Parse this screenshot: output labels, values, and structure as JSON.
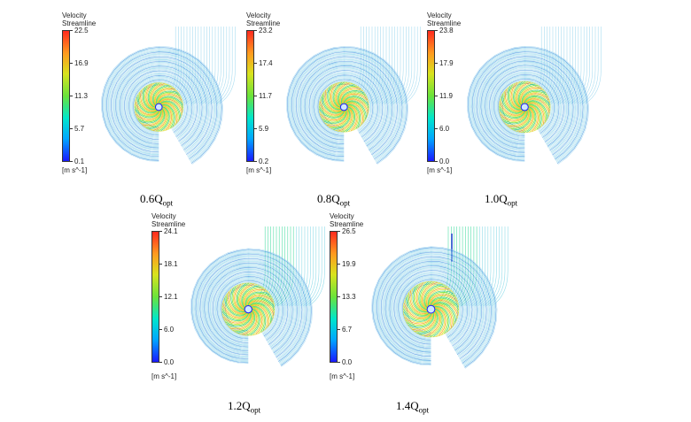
{
  "legend": {
    "title_line1": "Velocity",
    "title_line2": "Streamline",
    "unit": "[m s^-1]"
  },
  "colormap": [
    "#1a1aff",
    "#00a6ff",
    "#00e6cc",
    "#6be33a",
    "#d8e31e",
    "#ff9a1f",
    "#ff2a1f"
  ],
  "panels": [
    {
      "flow_multiplier": "0.6",
      "flow_symbol": "Q",
      "flow_subscript": "opt",
      "ticks": [
        "22.5",
        "16.9",
        "11.3",
        "5.7",
        "0.1"
      ]
    },
    {
      "flow_multiplier": "0.8",
      "flow_symbol": "Q",
      "flow_subscript": "opt",
      "ticks": [
        "23.2",
        "17.4",
        "11.7",
        "5.9",
        "0.2"
      ]
    },
    {
      "flow_multiplier": "1.0",
      "flow_symbol": "Q",
      "flow_subscript": "opt",
      "ticks": [
        "23.8",
        "17.9",
        "11.9",
        "6.0",
        "0.0"
      ]
    },
    {
      "flow_multiplier": "1.2",
      "flow_symbol": "Q",
      "flow_subscript": "opt",
      "ticks": [
        "24.1",
        "18.1",
        "12.1",
        "6.0",
        "0.0"
      ]
    },
    {
      "flow_multiplier": "1.4",
      "flow_symbol": "Q",
      "flow_subscript": "opt",
      "ticks": [
        "26.5",
        "19.9",
        "13.3",
        "6.7",
        "0.0"
      ]
    }
  ]
}
